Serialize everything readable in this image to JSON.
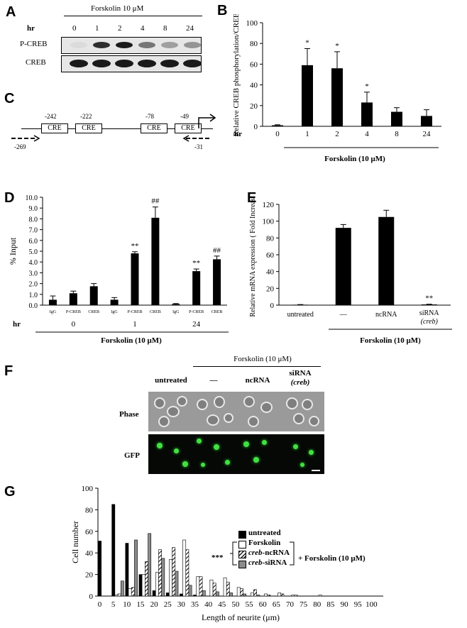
{
  "panels": {
    "A": {
      "letter": "A",
      "treatment": "Forskolin 10 μM",
      "hr_label": "hr",
      "timepoints": [
        "0",
        "1",
        "2",
        "4",
        "8",
        "24"
      ],
      "rows": [
        "P-CREB",
        "CREB"
      ],
      "pcreb_intensity": [
        0.05,
        0.9,
        1.0,
        0.55,
        0.35,
        0.4
      ],
      "creb_intensity": [
        1,
        1,
        1,
        1,
        1,
        1
      ]
    },
    "B": {
      "letter": "B",
      "xlabel": "Forskolin (10 μM)",
      "hr_label": "hr"
    },
    "C": {
      "letter": "C",
      "positions": [
        "-242",
        "-222",
        "-78",
        "-49"
      ],
      "element_label": "CRE",
      "primers": [
        "-269",
        "-31"
      ]
    },
    "D": {
      "letter": "D",
      "hr_label": "hr",
      "group_labels": [
        "0",
        "1",
        "24"
      ],
      "xlabel": "Forskolin (10 μM)"
    },
    "E": {
      "letter": "E",
      "xlabel": "Forskolin (10 μM)"
    },
    "F": {
      "letter": "F",
      "header": "Forskolin (10 μM)",
      "columns": [
        "untreated",
        "—",
        "ncRNA",
        "siRNA",
        "(creb)"
      ],
      "rows": [
        "Phase",
        "GFP"
      ]
    },
    "G": {
      "letter": "G",
      "legend": [
        "untreated",
        "Forskolin",
        "creb-ncRNA",
        "creb-siRNA"
      ],
      "legend_creb": "creb",
      "legend_suffix": [
        "-ncRNA",
        "-siRNA"
      ],
      "sig": "***",
      "bracket_label": "+ Forskolin (10 μM)"
    }
  },
  "chart_data": [
    {
      "id": "B",
      "type": "bar",
      "title": "",
      "xlabel": "Forskolin (10 μM)",
      "ylabel": "Relative CREB phosphorylation/CREB",
      "categories": [
        "0",
        "1",
        "2",
        "4",
        "8",
        "24"
      ],
      "values": [
        1,
        59,
        56,
        23,
        14,
        10
      ],
      "errors": [
        0.5,
        16,
        16,
        10,
        4,
        6
      ],
      "annotations": [
        "",
        "*",
        "*",
        "*",
        "",
        ""
      ],
      "ylim": [
        0,
        100
      ],
      "yticks": [
        0,
        20,
        40,
        60,
        80,
        100
      ],
      "grid": false
    },
    {
      "id": "D",
      "type": "bar",
      "title": "",
      "xlabel": "Forskolin (10 μM)",
      "ylabel": "% Input",
      "categories": [
        "IgG",
        "P-CREB",
        "CREB",
        "IgG",
        "P-CREB",
        "CREB",
        "IgG",
        "P-CREB",
        "CREB"
      ],
      "values": [
        0.5,
        1.1,
        1.75,
        0.5,
        4.8,
        8.1,
        0.1,
        3.15,
        4.25
      ],
      "errors": [
        0.35,
        0.2,
        0.25,
        0.2,
        0.15,
        1.0,
        0.05,
        0.2,
        0.3
      ],
      "annotations": [
        "",
        "",
        "",
        "",
        "**",
        "##",
        "",
        "**",
        "##"
      ],
      "ylim": [
        0,
        10
      ],
      "yticks": [
        0.0,
        1.0,
        2.0,
        3.0,
        4.0,
        5.0,
        6.0,
        7.0,
        8.0,
        9.0,
        10.0
      ],
      "grid": false
    },
    {
      "id": "E",
      "type": "bar",
      "title": "",
      "xlabel": "Forskolin (10 μM)",
      "ylabel": "Relative mRNA expression ( Fold Increase)",
      "categories": [
        "untreated",
        "—",
        "ncRNA",
        "siRNA (creb)"
      ],
      "values": [
        0.5,
        92,
        105,
        0.8
      ],
      "errors": [
        0.2,
        4,
        8,
        0.3
      ],
      "annotations": [
        "",
        "",
        "",
        "**"
      ],
      "ylim": [
        0,
        120
      ],
      "yticks": [
        0,
        20,
        40,
        60,
        80,
        100,
        120
      ],
      "grid": false
    },
    {
      "id": "G",
      "type": "bar",
      "title": "",
      "xlabel": "Length of neurite (μm)",
      "ylabel": "Cell number",
      "categories": [
        "0",
        "5",
        "10",
        "15",
        "20",
        "25",
        "30",
        "35",
        "40",
        "45",
        "50",
        "55",
        "60",
        "65",
        "70",
        "75",
        "80",
        "85",
        "90",
        "95",
        "100"
      ],
      "series": [
        {
          "name": "untreated",
          "values": [
            51,
            85,
            49,
            20,
            5,
            3,
            2,
            1,
            0,
            0,
            0,
            0,
            0,
            0,
            0,
            0,
            0,
            0,
            0,
            0,
            0
          ]
        },
        {
          "name": "Forskolin",
          "values": [
            0,
            1,
            7,
            20,
            22,
            34,
            52,
            18,
            15,
            17,
            8,
            3,
            2,
            3,
            1,
            0,
            1,
            0,
            0,
            0,
            0
          ]
        },
        {
          "name": "creb-ncRNA",
          "values": [
            0,
            2,
            8,
            32,
            43,
            45,
            43,
            18,
            12,
            13,
            7,
            6,
            1,
            2,
            1,
            0,
            0,
            0,
            0,
            0,
            0
          ]
        },
        {
          "name": "creb-siRNA",
          "values": [
            0,
            14,
            52,
            58,
            35,
            23,
            10,
            5,
            4,
            3,
            2,
            1,
            0,
            0,
            0,
            0,
            0,
            0,
            0,
            0,
            0
          ]
        }
      ],
      "ylim": [
        0,
        100
      ],
      "yticks": [
        0,
        20,
        40,
        60,
        80,
        100
      ],
      "grid": false
    }
  ]
}
